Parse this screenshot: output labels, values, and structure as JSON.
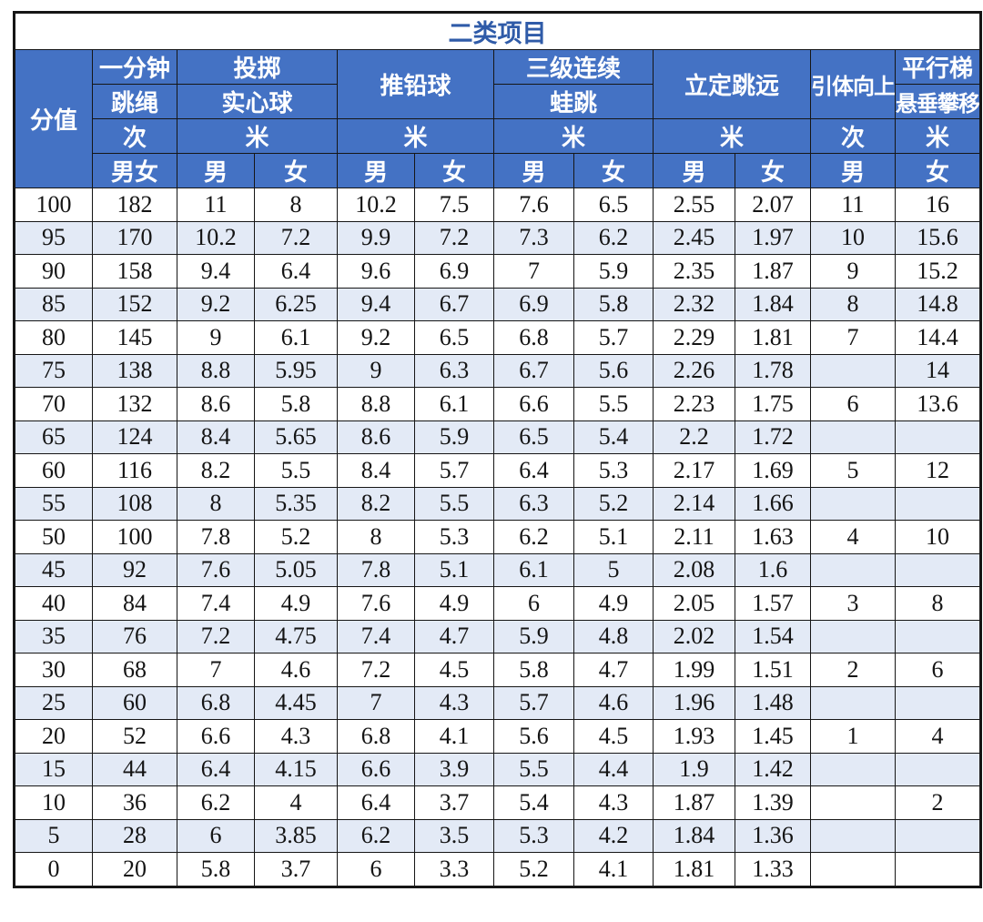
{
  "title": "二类项目",
  "header": {
    "score_label": "分值",
    "events": [
      {
        "line1": "一分钟",
        "line2": "跳绳",
        "unit": "次",
        "genders": [
          "男女"
        ]
      },
      {
        "line1": "投掷",
        "line2": "实心球",
        "unit": "米",
        "genders": [
          "男",
          "女"
        ]
      },
      {
        "name": "推铅球",
        "unit": "米",
        "genders": [
          "男",
          "女"
        ]
      },
      {
        "line1": "三级连续",
        "line2": "蛙跳",
        "unit": "米",
        "genders": [
          "男",
          "女"
        ]
      },
      {
        "name": "立定跳远",
        "unit": "米",
        "genders": [
          "男",
          "女"
        ]
      },
      {
        "name": "引体向上",
        "unit": "次",
        "genders": [
          "男"
        ]
      },
      {
        "line1": "平行梯",
        "line2": "悬垂攀移",
        "unit": "米",
        "genders": [
          "女"
        ]
      }
    ]
  },
  "rows": [
    [
      "100",
      "182",
      "11",
      "8",
      "10.2",
      "7.5",
      "7.6",
      "6.5",
      "2.55",
      "2.07",
      "11",
      "16"
    ],
    [
      "95",
      "170",
      "10.2",
      "7.2",
      "9.9",
      "7.2",
      "7.3",
      "6.2",
      "2.45",
      "1.97",
      "10",
      "15.6"
    ],
    [
      "90",
      "158",
      "9.4",
      "6.4",
      "9.6",
      "6.9",
      "7",
      "5.9",
      "2.35",
      "1.87",
      "9",
      "15.2"
    ],
    [
      "85",
      "152",
      "9.2",
      "6.25",
      "9.4",
      "6.7",
      "6.9",
      "5.8",
      "2.32",
      "1.84",
      "8",
      "14.8"
    ],
    [
      "80",
      "145",
      "9",
      "6.1",
      "9.2",
      "6.5",
      "6.8",
      "5.7",
      "2.29",
      "1.81",
      "7",
      "14.4"
    ],
    [
      "75",
      "138",
      "8.8",
      "5.95",
      "9",
      "6.3",
      "6.7",
      "5.6",
      "2.26",
      "1.78",
      "",
      "14"
    ],
    [
      "70",
      "132",
      "8.6",
      "5.8",
      "8.8",
      "6.1",
      "6.6",
      "5.5",
      "2.23",
      "1.75",
      "6",
      "13.6"
    ],
    [
      "65",
      "124",
      "8.4",
      "5.65",
      "8.6",
      "5.9",
      "6.5",
      "5.4",
      "2.2",
      "1.72",
      "",
      ""
    ],
    [
      "60",
      "116",
      "8.2",
      "5.5",
      "8.4",
      "5.7",
      "6.4",
      "5.3",
      "2.17",
      "1.69",
      "5",
      "12"
    ],
    [
      "55",
      "108",
      "8",
      "5.35",
      "8.2",
      "5.5",
      "6.3",
      "5.2",
      "2.14",
      "1.66",
      "",
      ""
    ],
    [
      "50",
      "100",
      "7.8",
      "5.2",
      "8",
      "5.3",
      "6.2",
      "5.1",
      "2.11",
      "1.63",
      "4",
      "10"
    ],
    [
      "45",
      "92",
      "7.6",
      "5.05",
      "7.8",
      "5.1",
      "6.1",
      "5",
      "2.08",
      "1.6",
      "",
      ""
    ],
    [
      "40",
      "84",
      "7.4",
      "4.9",
      "7.6",
      "4.9",
      "6",
      "4.9",
      "2.05",
      "1.57",
      "3",
      "8"
    ],
    [
      "35",
      "76",
      "7.2",
      "4.75",
      "7.4",
      "4.7",
      "5.9",
      "4.8",
      "2.02",
      "1.54",
      "",
      ""
    ],
    [
      "30",
      "68",
      "7",
      "4.6",
      "7.2",
      "4.5",
      "5.8",
      "4.7",
      "1.99",
      "1.51",
      "2",
      "6"
    ],
    [
      "25",
      "60",
      "6.8",
      "4.45",
      "7",
      "4.3",
      "5.7",
      "4.6",
      "1.96",
      "1.48",
      "",
      ""
    ],
    [
      "20",
      "52",
      "6.6",
      "4.3",
      "6.8",
      "4.1",
      "5.6",
      "4.5",
      "1.93",
      "1.45",
      "1",
      "4"
    ],
    [
      "15",
      "44",
      "6.4",
      "4.15",
      "6.6",
      "3.9",
      "5.5",
      "4.4",
      "1.9",
      "1.42",
      "",
      ""
    ],
    [
      "10",
      "36",
      "6.2",
      "4",
      "6.4",
      "3.7",
      "5.4",
      "4.3",
      "1.87",
      "1.39",
      "",
      "2"
    ],
    [
      "5",
      "28",
      "6",
      "3.85",
      "6.2",
      "3.5",
      "5.3",
      "4.2",
      "1.84",
      "1.36",
      "",
      ""
    ],
    [
      "0",
      "20",
      "5.8",
      "3.7",
      "6",
      "3.3",
      "5.2",
      "4.1",
      "1.81",
      "1.33",
      "",
      ""
    ]
  ],
  "colors": {
    "header_bg": "#4472C4",
    "alt_row_bg": "#E3EAF6",
    "title_text": "#2F5BA8",
    "border": "#161616"
  }
}
